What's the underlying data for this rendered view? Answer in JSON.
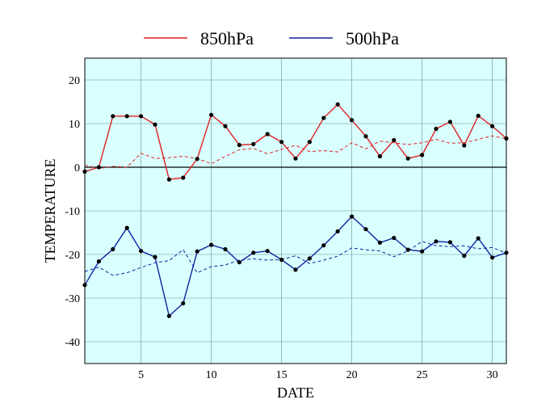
{
  "chart_data": {
    "type": "line",
    "xlabel": "DATE",
    "ylabel": "TEMPERATURE",
    "xlim": [
      1,
      31
    ],
    "ylim": [
      -45,
      25
    ],
    "xticks": [
      5,
      10,
      15,
      20,
      25,
      30
    ],
    "yticks": [
      20,
      10,
      0,
      -10,
      -20,
      -30,
      -40
    ],
    "grid": true,
    "legend_position": "top-center",
    "background_color": "#d9ffff",
    "zero_line": true,
    "x": [
      1,
      2,
      3,
      4,
      5,
      6,
      7,
      8,
      9,
      10,
      11,
      12,
      13,
      14,
      15,
      16,
      17,
      18,
      19,
      20,
      21,
      22,
      23,
      24,
      25,
      26,
      27,
      28,
      29,
      30,
      31
    ],
    "series": [
      {
        "name": "850hPa",
        "color": "#e02020",
        "style": "solid",
        "markers": true,
        "values": [
          -1,
          0,
          11.7,
          11.7,
          11.7,
          9.8,
          -2.8,
          -2.4,
          1.9,
          12,
          9.4,
          5.1,
          5.3,
          7.6,
          5.8,
          2,
          5.8,
          11.3,
          14.4,
          10.8,
          7.1,
          2.5,
          6.2,
          2,
          2.8,
          8.8,
          10.4,
          5,
          11.8,
          9.4,
          6.6
        ]
      },
      {
        "name": "850hPa-climatology",
        "color": "#e02020",
        "style": "dashed",
        "markers": false,
        "values": [
          0.5,
          -0.3,
          0.2,
          0,
          3.2,
          2,
          2.2,
          2.5,
          2,
          0.8,
          2.5,
          4,
          4.3,
          3.1,
          4.1,
          5,
          3.6,
          3.8,
          3.5,
          5.6,
          4.2,
          6,
          5.6,
          5.2,
          5.6,
          6.4,
          5.5,
          5.6,
          6.4,
          7.2,
          6.5
        ]
      },
      {
        "name": "500hPa",
        "color": "#1020a0",
        "style": "solid",
        "markers": true,
        "values": [
          -27,
          -21.6,
          -18.8,
          -13.9,
          -19.2,
          -20.6,
          -34.1,
          -31.2,
          -19.3,
          -17.8,
          -18.8,
          -21.8,
          -19.6,
          -19.2,
          -21.2,
          -23.5,
          -20.9,
          -17.9,
          -14.7,
          -11.3,
          -14.2,
          -17.3,
          -16.2,
          -18.9,
          -19.3,
          -17,
          -17.2,
          -20.3,
          -16.3,
          -20.7,
          -19.6
        ]
      },
      {
        "name": "500hPa-climatology",
        "color": "#1020a0",
        "style": "dashed",
        "markers": false,
        "values": [
          -23.9,
          -22.9,
          -24.8,
          -24.2,
          -23,
          -21.9,
          -21.4,
          -18.9,
          -24.2,
          -22.8,
          -22.4,
          -21.3,
          -21,
          -21.3,
          -21.2,
          -20.3,
          -22.1,
          -21.3,
          -20.4,
          -18.5,
          -18.9,
          -19.2,
          -20.5,
          -19.2,
          -17,
          -18,
          -18.2,
          -18,
          -18.7,
          -18.4,
          -19.7
        ]
      }
    ],
    "legend": [
      {
        "label": "850hPa",
        "color": "#e02020"
      },
      {
        "label": "500hPa",
        "color": "#1020a0"
      }
    ]
  }
}
